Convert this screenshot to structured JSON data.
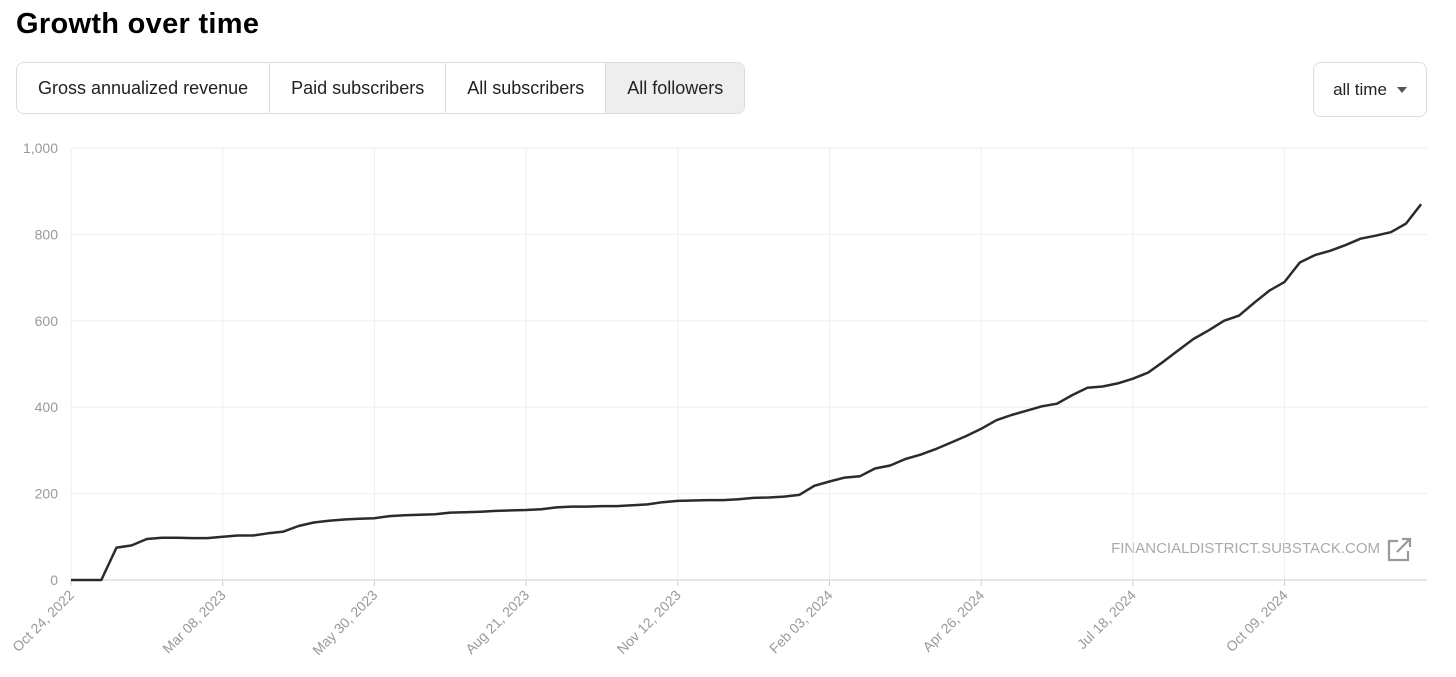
{
  "ui": {
    "title": "Growth over time",
    "tabs": [
      "Gross annualized revenue",
      "Paid subscribers",
      "All subscribers",
      "All followers"
    ],
    "selected_tab": 3,
    "dropdown": "all time"
  },
  "chart_data": {
    "type": "line",
    "categories": [
      "Oct 24, 2022",
      null,
      null,
      null,
      null,
      null,
      null,
      null,
      null,
      null,
      "Mar 08, 2023",
      null,
      null,
      null,
      null,
      null,
      null,
      null,
      null,
      null,
      "May 30, 2023",
      null,
      null,
      null,
      null,
      null,
      null,
      null,
      null,
      null,
      "Aug 21, 2023",
      null,
      null,
      null,
      null,
      null,
      null,
      null,
      null,
      null,
      "Nov 12, 2023",
      null,
      null,
      null,
      null,
      null,
      null,
      null,
      null,
      null,
      "Feb 03, 2024",
      null,
      null,
      null,
      null,
      null,
      null,
      null,
      null,
      null,
      "Apr 26, 2024",
      null,
      null,
      null,
      null,
      null,
      null,
      null,
      null,
      null,
      "Jul 18, 2024",
      null,
      null,
      null,
      null,
      null,
      null,
      null,
      null,
      null,
      "Oct 09, 2024",
      null,
      null,
      null,
      null,
      null,
      null,
      null,
      null,
      null
    ],
    "values": [
      0,
      0,
      0,
      75,
      80,
      95,
      98,
      98,
      97,
      97,
      100,
      103,
      103,
      108,
      112,
      125,
      133,
      137,
      140,
      142,
      143,
      148,
      150,
      151,
      152,
      156,
      157,
      158,
      160,
      161,
      162,
      164,
      168,
      170,
      170,
      171,
      171,
      173,
      175,
      180,
      183,
      184,
      185,
      185,
      187,
      190,
      191,
      193,
      197,
      218,
      228,
      237,
      240,
      258,
      265,
      280,
      290,
      303,
      318,
      333,
      350,
      370,
      382,
      392,
      402,
      408,
      428,
      445,
      448,
      455,
      466,
      480,
      505,
      532,
      558,
      578,
      600,
      612,
      642,
      670,
      690,
      735,
      752,
      762,
      775,
      790,
      797,
      805,
      825,
      870
    ],
    "color": "#2b2b2b",
    "ylim": [
      0,
      1000
    ],
    "yticks": [
      0,
      200,
      400,
      600,
      800,
      {
        "value": 1000,
        "label": "1,000"
      }
    ],
    "grid": true,
    "watermark": "FINANCIALDISTRICT.SUBSTACK.COM"
  }
}
